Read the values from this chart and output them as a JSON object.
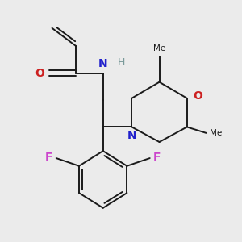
{
  "background_color": "#ebebeb",
  "bond_color": "#1a1a1a",
  "N_color": "#2020cc",
  "O_color": "#cc2020",
  "F_color": "#cc44cc",
  "H_color": "#7a9a9a",
  "figsize": [
    3.0,
    3.0
  ],
  "dpi": 100,
  "xlim": [
    0.5,
    4.5
  ],
  "ylim": [
    0.3,
    4.3
  ]
}
